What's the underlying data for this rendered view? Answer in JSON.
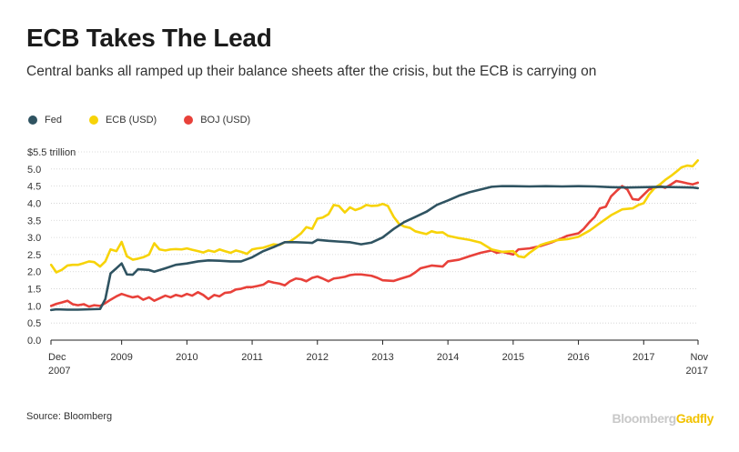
{
  "header": {
    "title": "ECB Takes The Lead",
    "subtitle": "Central banks all ramped up their balance sheets after the crisis, but the ECB is carrying on"
  },
  "footer": {
    "source": "Source: Bloomberg",
    "brand_part1": "Bloomberg",
    "brand_part2": "Gadfly"
  },
  "chart_data": {
    "type": "line",
    "title": "ECB Takes The Lead",
    "subtitle": "Central banks all ramped up their balance sheets after the crisis, but the ECB is carrying on",
    "ylabel": "",
    "xlabel": "",
    "y_unit_label": "$5.5 trillion",
    "ylim": [
      0,
      5.5
    ],
    "xlim": [
      2007.917,
      2017.833
    ],
    "grid": true,
    "legend_position": "top-left",
    "y_ticks": [
      {
        "value": 5.5,
        "label": "$5.5 trillion"
      },
      {
        "value": 5.0,
        "label": "5.0"
      },
      {
        "value": 4.5,
        "label": "4.5"
      },
      {
        "value": 4.0,
        "label": "4.0"
      },
      {
        "value": 3.5,
        "label": "3.5"
      },
      {
        "value": 3.0,
        "label": "3.0"
      },
      {
        "value": 2.5,
        "label": "2.5"
      },
      {
        "value": 2.0,
        "label": "2.0"
      },
      {
        "value": 1.5,
        "label": "1.5"
      },
      {
        "value": 1.0,
        "label": "1.0"
      },
      {
        "value": 0.5,
        "label": "0.5"
      },
      {
        "value": 0.0,
        "label": "0.0"
      }
    ],
    "x_ticks": [
      {
        "value": 2007.917,
        "label": "Dec",
        "label2": "2007"
      },
      {
        "value": 2009,
        "label": "2009",
        "label2": ""
      },
      {
        "value": 2010,
        "label": "2010",
        "label2": ""
      },
      {
        "value": 2011,
        "label": "2011",
        "label2": ""
      },
      {
        "value": 2012,
        "label": "2012",
        "label2": ""
      },
      {
        "value": 2013,
        "label": "2013",
        "label2": ""
      },
      {
        "value": 2014,
        "label": "2014",
        "label2": ""
      },
      {
        "value": 2015,
        "label": "2015",
        "label2": ""
      },
      {
        "value": 2016,
        "label": "2016",
        "label2": ""
      },
      {
        "value": 2017,
        "label": "2017",
        "label2": ""
      },
      {
        "value": 2017.833,
        "label": "Nov",
        "label2": "2017"
      }
    ],
    "series": [
      {
        "name": "Fed",
        "color": "#2f5361",
        "points": [
          [
            2007.92,
            0.88
          ],
          [
            2008.0,
            0.9
          ],
          [
            2008.17,
            0.89
          ],
          [
            2008.33,
            0.89
          ],
          [
            2008.5,
            0.9
          ],
          [
            2008.67,
            0.91
          ],
          [
            2008.75,
            1.2
          ],
          [
            2008.83,
            1.95
          ],
          [
            2008.92,
            2.1
          ],
          [
            2009.0,
            2.24
          ],
          [
            2009.08,
            1.92
          ],
          [
            2009.17,
            1.91
          ],
          [
            2009.25,
            2.07
          ],
          [
            2009.42,
            2.05
          ],
          [
            2009.5,
            2.0
          ],
          [
            2009.67,
            2.1
          ],
          [
            2009.83,
            2.2
          ],
          [
            2010.0,
            2.24
          ],
          [
            2010.17,
            2.3
          ],
          [
            2010.33,
            2.33
          ],
          [
            2010.5,
            2.32
          ],
          [
            2010.67,
            2.3
          ],
          [
            2010.83,
            2.3
          ],
          [
            2011.0,
            2.42
          ],
          [
            2011.17,
            2.6
          ],
          [
            2011.33,
            2.72
          ],
          [
            2011.5,
            2.86
          ],
          [
            2011.67,
            2.86
          ],
          [
            2011.83,
            2.85
          ],
          [
            2011.92,
            2.84
          ],
          [
            2012.0,
            2.93
          ],
          [
            2012.17,
            2.9
          ],
          [
            2012.33,
            2.88
          ],
          [
            2012.5,
            2.86
          ],
          [
            2012.67,
            2.8
          ],
          [
            2012.83,
            2.85
          ],
          [
            2013.0,
            3.0
          ],
          [
            2013.17,
            3.25
          ],
          [
            2013.33,
            3.45
          ],
          [
            2013.5,
            3.6
          ],
          [
            2013.67,
            3.75
          ],
          [
            2013.83,
            3.95
          ],
          [
            2014.0,
            4.08
          ],
          [
            2014.17,
            4.22
          ],
          [
            2014.33,
            4.32
          ],
          [
            2014.5,
            4.4
          ],
          [
            2014.67,
            4.48
          ],
          [
            2014.83,
            4.5
          ],
          [
            2015.0,
            4.5
          ],
          [
            2015.25,
            4.49
          ],
          [
            2015.5,
            4.5
          ],
          [
            2015.75,
            4.49
          ],
          [
            2016.0,
            4.5
          ],
          [
            2016.25,
            4.49
          ],
          [
            2016.5,
            4.47
          ],
          [
            2016.75,
            4.46
          ],
          [
            2017.0,
            4.47
          ],
          [
            2017.25,
            4.48
          ],
          [
            2017.5,
            4.47
          ],
          [
            2017.75,
            4.46
          ],
          [
            2017.83,
            4.44
          ]
        ]
      },
      {
        "name": "ECB (USD)",
        "color": "#f7d308",
        "points": [
          [
            2007.92,
            2.2
          ],
          [
            2008.0,
            1.98
          ],
          [
            2008.08,
            2.05
          ],
          [
            2008.17,
            2.18
          ],
          [
            2008.25,
            2.2
          ],
          [
            2008.33,
            2.2
          ],
          [
            2008.42,
            2.25
          ],
          [
            2008.5,
            2.3
          ],
          [
            2008.58,
            2.28
          ],
          [
            2008.67,
            2.15
          ],
          [
            2008.75,
            2.3
          ],
          [
            2008.83,
            2.65
          ],
          [
            2008.92,
            2.6
          ],
          [
            2009.0,
            2.87
          ],
          [
            2009.08,
            2.45
          ],
          [
            2009.17,
            2.35
          ],
          [
            2009.25,
            2.38
          ],
          [
            2009.33,
            2.42
          ],
          [
            2009.42,
            2.5
          ],
          [
            2009.5,
            2.83
          ],
          [
            2009.58,
            2.65
          ],
          [
            2009.67,
            2.62
          ],
          [
            2009.75,
            2.65
          ],
          [
            2009.83,
            2.66
          ],
          [
            2009.92,
            2.65
          ],
          [
            2010.0,
            2.68
          ],
          [
            2010.08,
            2.64
          ],
          [
            2010.17,
            2.6
          ],
          [
            2010.25,
            2.56
          ],
          [
            2010.33,
            2.62
          ],
          [
            2010.42,
            2.58
          ],
          [
            2010.5,
            2.65
          ],
          [
            2010.58,
            2.6
          ],
          [
            2010.67,
            2.55
          ],
          [
            2010.75,
            2.62
          ],
          [
            2010.83,
            2.58
          ],
          [
            2010.92,
            2.52
          ],
          [
            2011.0,
            2.65
          ],
          [
            2011.08,
            2.68
          ],
          [
            2011.17,
            2.7
          ],
          [
            2011.25,
            2.75
          ],
          [
            2011.33,
            2.8
          ],
          [
            2011.42,
            2.78
          ],
          [
            2011.5,
            2.86
          ],
          [
            2011.58,
            2.88
          ],
          [
            2011.67,
            3.0
          ],
          [
            2011.75,
            3.12
          ],
          [
            2011.83,
            3.3
          ],
          [
            2011.92,
            3.25
          ],
          [
            2012.0,
            3.55
          ],
          [
            2012.08,
            3.58
          ],
          [
            2012.17,
            3.68
          ],
          [
            2012.25,
            3.95
          ],
          [
            2012.33,
            3.92
          ],
          [
            2012.42,
            3.73
          ],
          [
            2012.5,
            3.88
          ],
          [
            2012.58,
            3.8
          ],
          [
            2012.67,
            3.86
          ],
          [
            2012.75,
            3.95
          ],
          [
            2012.83,
            3.92
          ],
          [
            2012.92,
            3.93
          ],
          [
            2013.0,
            3.98
          ],
          [
            2013.08,
            3.92
          ],
          [
            2013.17,
            3.6
          ],
          [
            2013.25,
            3.4
          ],
          [
            2013.33,
            3.32
          ],
          [
            2013.42,
            3.28
          ],
          [
            2013.5,
            3.18
          ],
          [
            2013.58,
            3.14
          ],
          [
            2013.67,
            3.1
          ],
          [
            2013.75,
            3.18
          ],
          [
            2013.83,
            3.14
          ],
          [
            2013.92,
            3.15
          ],
          [
            2014.0,
            3.05
          ],
          [
            2014.17,
            2.98
          ],
          [
            2014.33,
            2.93
          ],
          [
            2014.5,
            2.85
          ],
          [
            2014.67,
            2.65
          ],
          [
            2014.83,
            2.58
          ],
          [
            2015.0,
            2.6
          ],
          [
            2015.08,
            2.45
          ],
          [
            2015.17,
            2.42
          ],
          [
            2015.25,
            2.55
          ],
          [
            2015.42,
            2.78
          ],
          [
            2015.5,
            2.83
          ],
          [
            2015.67,
            2.92
          ],
          [
            2015.83,
            2.95
          ],
          [
            2016.0,
            3.02
          ],
          [
            2016.17,
            3.2
          ],
          [
            2016.33,
            3.42
          ],
          [
            2016.5,
            3.65
          ],
          [
            2016.67,
            3.82
          ],
          [
            2016.83,
            3.85
          ],
          [
            2016.92,
            3.95
          ],
          [
            2017.0,
            4.0
          ],
          [
            2017.08,
            4.25
          ],
          [
            2017.17,
            4.45
          ],
          [
            2017.25,
            4.55
          ],
          [
            2017.33,
            4.68
          ],
          [
            2017.42,
            4.8
          ],
          [
            2017.5,
            4.92
          ],
          [
            2017.58,
            5.05
          ],
          [
            2017.67,
            5.1
          ],
          [
            2017.75,
            5.08
          ],
          [
            2017.83,
            5.25
          ]
        ]
      },
      {
        "name": "BOJ (USD)",
        "color": "#e8413a",
        "points": [
          [
            2007.92,
            1.0
          ],
          [
            2008.0,
            1.06
          ],
          [
            2008.08,
            1.1
          ],
          [
            2008.17,
            1.15
          ],
          [
            2008.25,
            1.05
          ],
          [
            2008.33,
            1.02
          ],
          [
            2008.42,
            1.05
          ],
          [
            2008.5,
            0.98
          ],
          [
            2008.58,
            1.02
          ],
          [
            2008.67,
            1.0
          ],
          [
            2008.75,
            1.08
          ],
          [
            2008.83,
            1.18
          ],
          [
            2008.92,
            1.28
          ],
          [
            2009.0,
            1.35
          ],
          [
            2009.08,
            1.3
          ],
          [
            2009.17,
            1.25
          ],
          [
            2009.25,
            1.28
          ],
          [
            2009.33,
            1.18
          ],
          [
            2009.42,
            1.25
          ],
          [
            2009.5,
            1.15
          ],
          [
            2009.58,
            1.22
          ],
          [
            2009.67,
            1.3
          ],
          [
            2009.75,
            1.25
          ],
          [
            2009.83,
            1.32
          ],
          [
            2009.92,
            1.28
          ],
          [
            2010.0,
            1.35
          ],
          [
            2010.08,
            1.3
          ],
          [
            2010.17,
            1.4
          ],
          [
            2010.25,
            1.32
          ],
          [
            2010.33,
            1.2
          ],
          [
            2010.42,
            1.32
          ],
          [
            2010.5,
            1.28
          ],
          [
            2010.58,
            1.38
          ],
          [
            2010.67,
            1.4
          ],
          [
            2010.75,
            1.48
          ],
          [
            2010.83,
            1.5
          ],
          [
            2010.92,
            1.55
          ],
          [
            2011.0,
            1.55
          ],
          [
            2011.08,
            1.58
          ],
          [
            2011.17,
            1.62
          ],
          [
            2011.25,
            1.72
          ],
          [
            2011.33,
            1.68
          ],
          [
            2011.42,
            1.65
          ],
          [
            2011.5,
            1.6
          ],
          [
            2011.58,
            1.72
          ],
          [
            2011.67,
            1.8
          ],
          [
            2011.75,
            1.78
          ],
          [
            2011.83,
            1.72
          ],
          [
            2011.92,
            1.82
          ],
          [
            2012.0,
            1.86
          ],
          [
            2012.08,
            1.8
          ],
          [
            2012.17,
            1.72
          ],
          [
            2012.25,
            1.8
          ],
          [
            2012.33,
            1.82
          ],
          [
            2012.42,
            1.85
          ],
          [
            2012.5,
            1.9
          ],
          [
            2012.58,
            1.92
          ],
          [
            2012.67,
            1.92
          ],
          [
            2012.75,
            1.9
          ],
          [
            2012.83,
            1.88
          ],
          [
            2012.92,
            1.82
          ],
          [
            2013.0,
            1.75
          ],
          [
            2013.17,
            1.73
          ],
          [
            2013.25,
            1.78
          ],
          [
            2013.42,
            1.88
          ],
          [
            2013.5,
            1.98
          ],
          [
            2013.58,
            2.1
          ],
          [
            2013.75,
            2.18
          ],
          [
            2013.92,
            2.15
          ],
          [
            2014.0,
            2.3
          ],
          [
            2014.17,
            2.35
          ],
          [
            2014.33,
            2.45
          ],
          [
            2014.5,
            2.55
          ],
          [
            2014.67,
            2.62
          ],
          [
            2014.75,
            2.55
          ],
          [
            2014.83,
            2.58
          ],
          [
            2015.0,
            2.5
          ],
          [
            2015.08,
            2.65
          ],
          [
            2015.25,
            2.68
          ],
          [
            2015.42,
            2.75
          ],
          [
            2015.58,
            2.85
          ],
          [
            2015.75,
            2.98
          ],
          [
            2015.83,
            3.05
          ],
          [
            2016.0,
            3.12
          ],
          [
            2016.08,
            3.25
          ],
          [
            2016.17,
            3.45
          ],
          [
            2016.25,
            3.6
          ],
          [
            2016.33,
            3.85
          ],
          [
            2016.42,
            3.9
          ],
          [
            2016.5,
            4.2
          ],
          [
            2016.58,
            4.35
          ],
          [
            2016.67,
            4.5
          ],
          [
            2016.75,
            4.4
          ],
          [
            2016.83,
            4.12
          ],
          [
            2016.92,
            4.1
          ],
          [
            2017.0,
            4.25
          ],
          [
            2017.08,
            4.4
          ],
          [
            2017.17,
            4.45
          ],
          [
            2017.25,
            4.5
          ],
          [
            2017.33,
            4.45
          ],
          [
            2017.42,
            4.55
          ],
          [
            2017.5,
            4.65
          ],
          [
            2017.58,
            4.62
          ],
          [
            2017.67,
            4.58
          ],
          [
            2017.75,
            4.55
          ],
          [
            2017.83,
            4.6
          ]
        ]
      }
    ]
  }
}
